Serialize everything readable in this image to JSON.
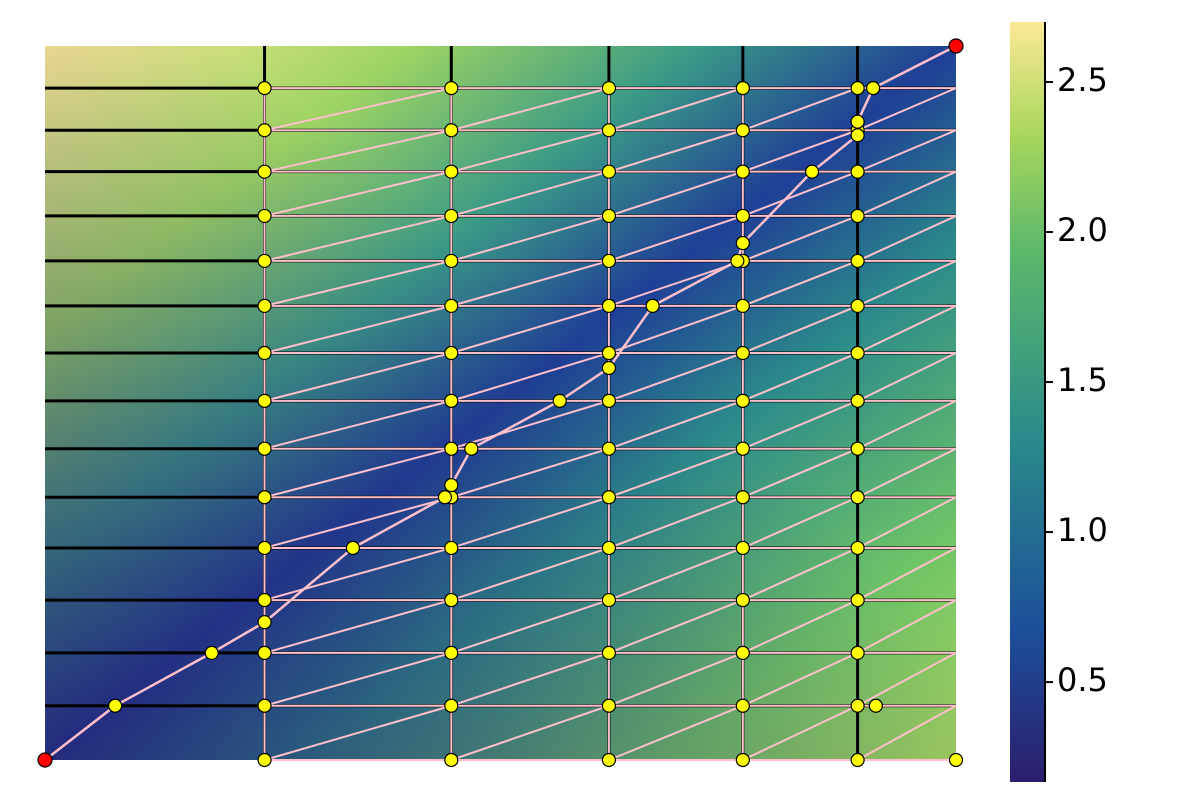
{
  "chart_data": {
    "type": "heatmap",
    "columns": [
      0.241,
      0.446,
      0.619,
      0.766,
      0.892
    ],
    "rows": [
      0.076,
      0.15,
      0.224,
      0.297,
      0.368,
      0.436,
      0.503,
      0.57,
      0.636,
      0.699,
      0.762,
      0.824,
      0.882,
      0.941
    ],
    "start": [
      0,
      0
    ],
    "goal": [
      1,
      1
    ],
    "points": [
      [
        0.077,
        0.076
      ],
      [
        0.183,
        0.15
      ],
      [
        0.241,
        0.193
      ],
      [
        0.338,
        0.297
      ],
      [
        0.439,
        0.368
      ],
      [
        0.446,
        0.385
      ],
      [
        0.468,
        0.436
      ],
      [
        0.565,
        0.503
      ],
      [
        0.619,
        0.549
      ],
      [
        0.667,
        0.636
      ],
      [
        0.76,
        0.699
      ],
      [
        0.766,
        0.724
      ],
      [
        0.842,
        0.824
      ],
      [
        0.892,
        0.875
      ],
      [
        0.892,
        0.894
      ],
      [
        0.909,
        0.941
      ],
      [
        0.912,
        0.076
      ]
    ],
    "xlim": [
      0,
      1
    ],
    "ylim": [
      0,
      1
    ],
    "clim": [
      0.167,
      2.7
    ],
    "cticks": [
      0.5,
      1.0,
      1.5,
      2.0,
      2.5
    ],
    "node_color": "#ffff00",
    "endpoint_color": "#ff0000",
    "edge_color": "#ffc0cb",
    "line_color": "#000000"
  }
}
